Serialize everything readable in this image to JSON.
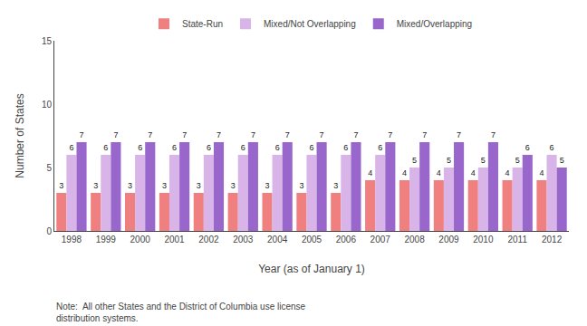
{
  "chart_data": {
    "type": "bar",
    "categories": [
      "1998",
      "1999",
      "2000",
      "2001",
      "2002",
      "2003",
      "2004",
      "2005",
      "2006",
      "2007",
      "2008",
      "2009",
      "2010",
      "2011",
      "2012"
    ],
    "series": [
      {
        "name": "State-Run",
        "color": "#f08080",
        "values": [
          3,
          3,
          3,
          3,
          3,
          3,
          3,
          3,
          3,
          4,
          4,
          4,
          4,
          4,
          4
        ]
      },
      {
        "name": "Mixed/Not Overlapping",
        "color": "#d8b4e8",
        "values": [
          6,
          6,
          6,
          6,
          6,
          6,
          6,
          6,
          6,
          6,
          5,
          5,
          5,
          5,
          6
        ]
      },
      {
        "name": "Mixed/Overlapping",
        "color": "#9966cc",
        "values": [
          7,
          7,
          7,
          7,
          7,
          7,
          7,
          7,
          7,
          7,
          7,
          7,
          7,
          6,
          5
        ]
      }
    ],
    "xlabel": "Year (as of January 1)",
    "ylabel": "Number of States",
    "ylim": [
      0,
      15
    ],
    "yticks": [
      0,
      5,
      10,
      15
    ],
    "grid": false,
    "legend": "top",
    "data_labels": true,
    "annotations": [
      "Note:  All other States and the District of Columbia use license\ndistribution systems."
    ]
  }
}
